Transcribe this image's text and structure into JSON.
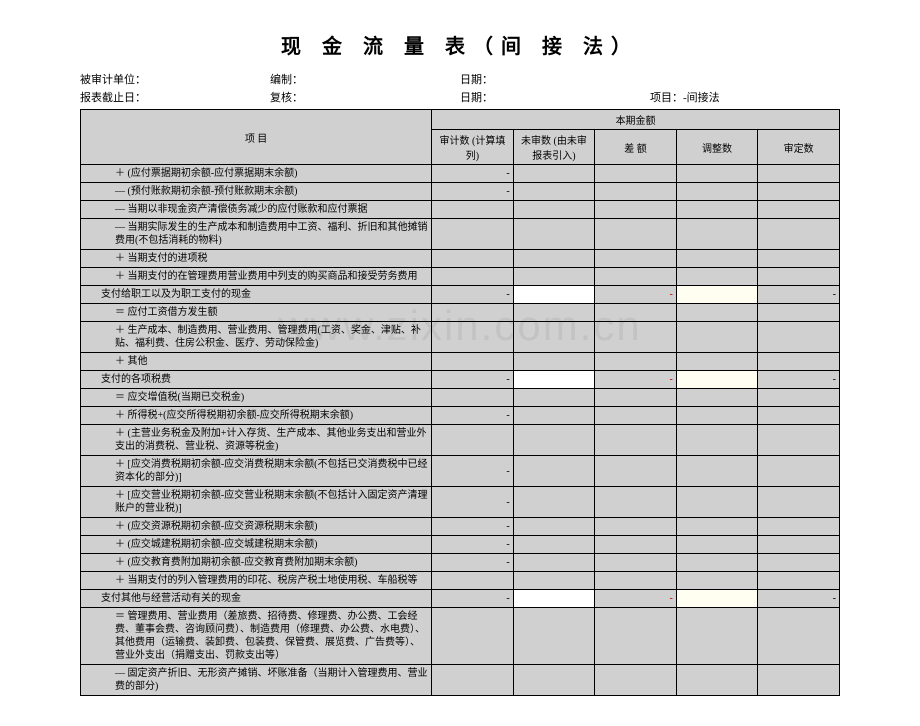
{
  "title": "现 金 流 量 表（间 接 法）",
  "header": {
    "unit_label": "被审计单位：",
    "prepared_label": "编制：",
    "date1_label": "日期：",
    "report_date_label": "报表截止日：",
    "review_label": "复核：",
    "date2_label": "日期：",
    "project_label": "项目：-间接法"
  },
  "thead": {
    "item": "项  目",
    "group": "本期金额",
    "c1": "审计数\n(计算填列)",
    "c2": "未审数\n(由未审报表引入)",
    "c3": "差  额",
    "c4": "调整数",
    "c5": "审定数"
  },
  "rows": [
    {
      "item": "＋ (应付票据期初余额-应付票据期末余额)",
      "c1": "-",
      "indent": 2,
      "cells": [
        "d",
        "",
        "",
        "",
        ""
      ]
    },
    {
      "item": "— (预付账款期初余额-预付账款期末余额)",
      "c1": "-",
      "indent": 2,
      "cells": [
        "d",
        "",
        "",
        "",
        ""
      ]
    },
    {
      "item": "— 当期以非现金资产清偿债务减少的应付账款和应付票据",
      "indent": 2,
      "cells": [
        "",
        "",
        "",
        "",
        ""
      ]
    },
    {
      "item": "— 当期实际发生的生产成本和制造费用中工资、福利、折旧和其他摊销费用(不包括消耗的物料)",
      "indent": 2,
      "cells": [
        "",
        "",
        "",
        "",
        ""
      ]
    },
    {
      "item": "＋ 当期支付的进项税",
      "indent": 2,
      "cells": [
        "",
        "",
        "",
        "",
        ""
      ]
    },
    {
      "item": "＋ 当期支付的在管理费用营业费用中列支的购买商品和接受劳务费用",
      "indent": 2,
      "cells": [
        "",
        "",
        "",
        "",
        ""
      ]
    },
    {
      "item": "支付给职工以及为职工支付的现金",
      "c1": "-",
      "c2": "",
      "c3": "-",
      "c5": "-",
      "indent": 1,
      "summary": true,
      "cells": [
        "d",
        "w",
        "r",
        "y",
        "d"
      ]
    },
    {
      "item": "＝ 应付工资借方发生额",
      "indent": 2,
      "cells": [
        "",
        "",
        "",
        "",
        ""
      ]
    },
    {
      "item": "＋ 生产成本、制造费用、营业费用、管理费用(工资、奖金、津贴、补贴、福利费、住房公积金、医疗、劳动保险金)",
      "indent": 2,
      "cells": [
        "",
        "",
        "",
        "",
        ""
      ]
    },
    {
      "item": "＋ 其他",
      "indent": 2,
      "cells": [
        "",
        "",
        "",
        "",
        ""
      ]
    },
    {
      "item": "支付的各项税费",
      "c1": "-",
      "c2": "",
      "c3": "-",
      "c5": "-",
      "indent": 1,
      "summary": true,
      "cells": [
        "d",
        "w",
        "r",
        "y",
        "d"
      ]
    },
    {
      "item": "＝ 应交增值税(当期已交税金)",
      "indent": 2,
      "cells": [
        "",
        "",
        "",
        "",
        ""
      ]
    },
    {
      "item": "＋ 所得税+(应交所得税期初余额-应交所得税期末余额)",
      "c1": "-",
      "indent": 2,
      "cells": [
        "d",
        "",
        "",
        "",
        ""
      ]
    },
    {
      "item": "＋ (主营业务税金及附加+计入存货、生产成本、其他业务支出和营业外支出的消费税、营业税、资源等税金)",
      "indent": 2,
      "cells": [
        "",
        "",
        "",
        "",
        ""
      ]
    },
    {
      "item": "＋ [应交消费税期初余额-应交消费税期末余额(不包括已交消费税中已经资本化的部分)]",
      "c1": "-",
      "indent": 2,
      "cells": [
        "d",
        "",
        "",
        "",
        ""
      ]
    },
    {
      "item": "＋ [应交营业税期初余额-应交营业税期末余额(不包括计入固定资产清理账户的营业税)]",
      "c1": "-",
      "indent": 2,
      "cells": [
        "d",
        "",
        "",
        "",
        ""
      ]
    },
    {
      "item": "＋ (应交资源税期初余额-应交资源税期末余额)",
      "c1": "-",
      "indent": 2,
      "cells": [
        "d",
        "",
        "",
        "",
        ""
      ]
    },
    {
      "item": "＋ (应交城建税期初余额-应交城建税期末余额)",
      "c1": "-",
      "indent": 2,
      "cells": [
        "d",
        "",
        "",
        "",
        ""
      ]
    },
    {
      "item": "＋ (应交教育费附加期初余额-应交教育费附加期末余额)",
      "c1": "-",
      "indent": 2,
      "cells": [
        "d",
        "",
        "",
        "",
        ""
      ]
    },
    {
      "item": "＋ 当期支付的列入管理费用的印花、税房产税土地使用税、车船税等",
      "indent": 2,
      "cells": [
        "",
        "",
        "",
        "",
        ""
      ]
    },
    {
      "item": "支付其他与经营活动有关的现金",
      "c1": "-",
      "c2": "",
      "c3": "-",
      "c5": "-",
      "indent": 1,
      "summary": true,
      "cells": [
        "d",
        "w",
        "r",
        "y",
        "d"
      ]
    },
    {
      "item": "＝ 管理费用、营业费用（差旅费、招待费、修理费、办公费、工会经费、董事会费、咨询顾问费）、制造费用（修理费、办公费、水电费）、其他费用（运输费、装卸费、包装费、保管费、展览费、广告费等）、营业外支出（捐赠支出、罚款支出等）",
      "indent": 2,
      "cells": [
        "",
        "",
        "",
        "",
        ""
      ]
    },
    {
      "item": "— 固定资产折旧、无形资产摊销、坏账准备（当期计入管理费用、营业费的部分)",
      "indent": 2,
      "cells": [
        "",
        "",
        "",
        "",
        ""
      ]
    }
  ]
}
